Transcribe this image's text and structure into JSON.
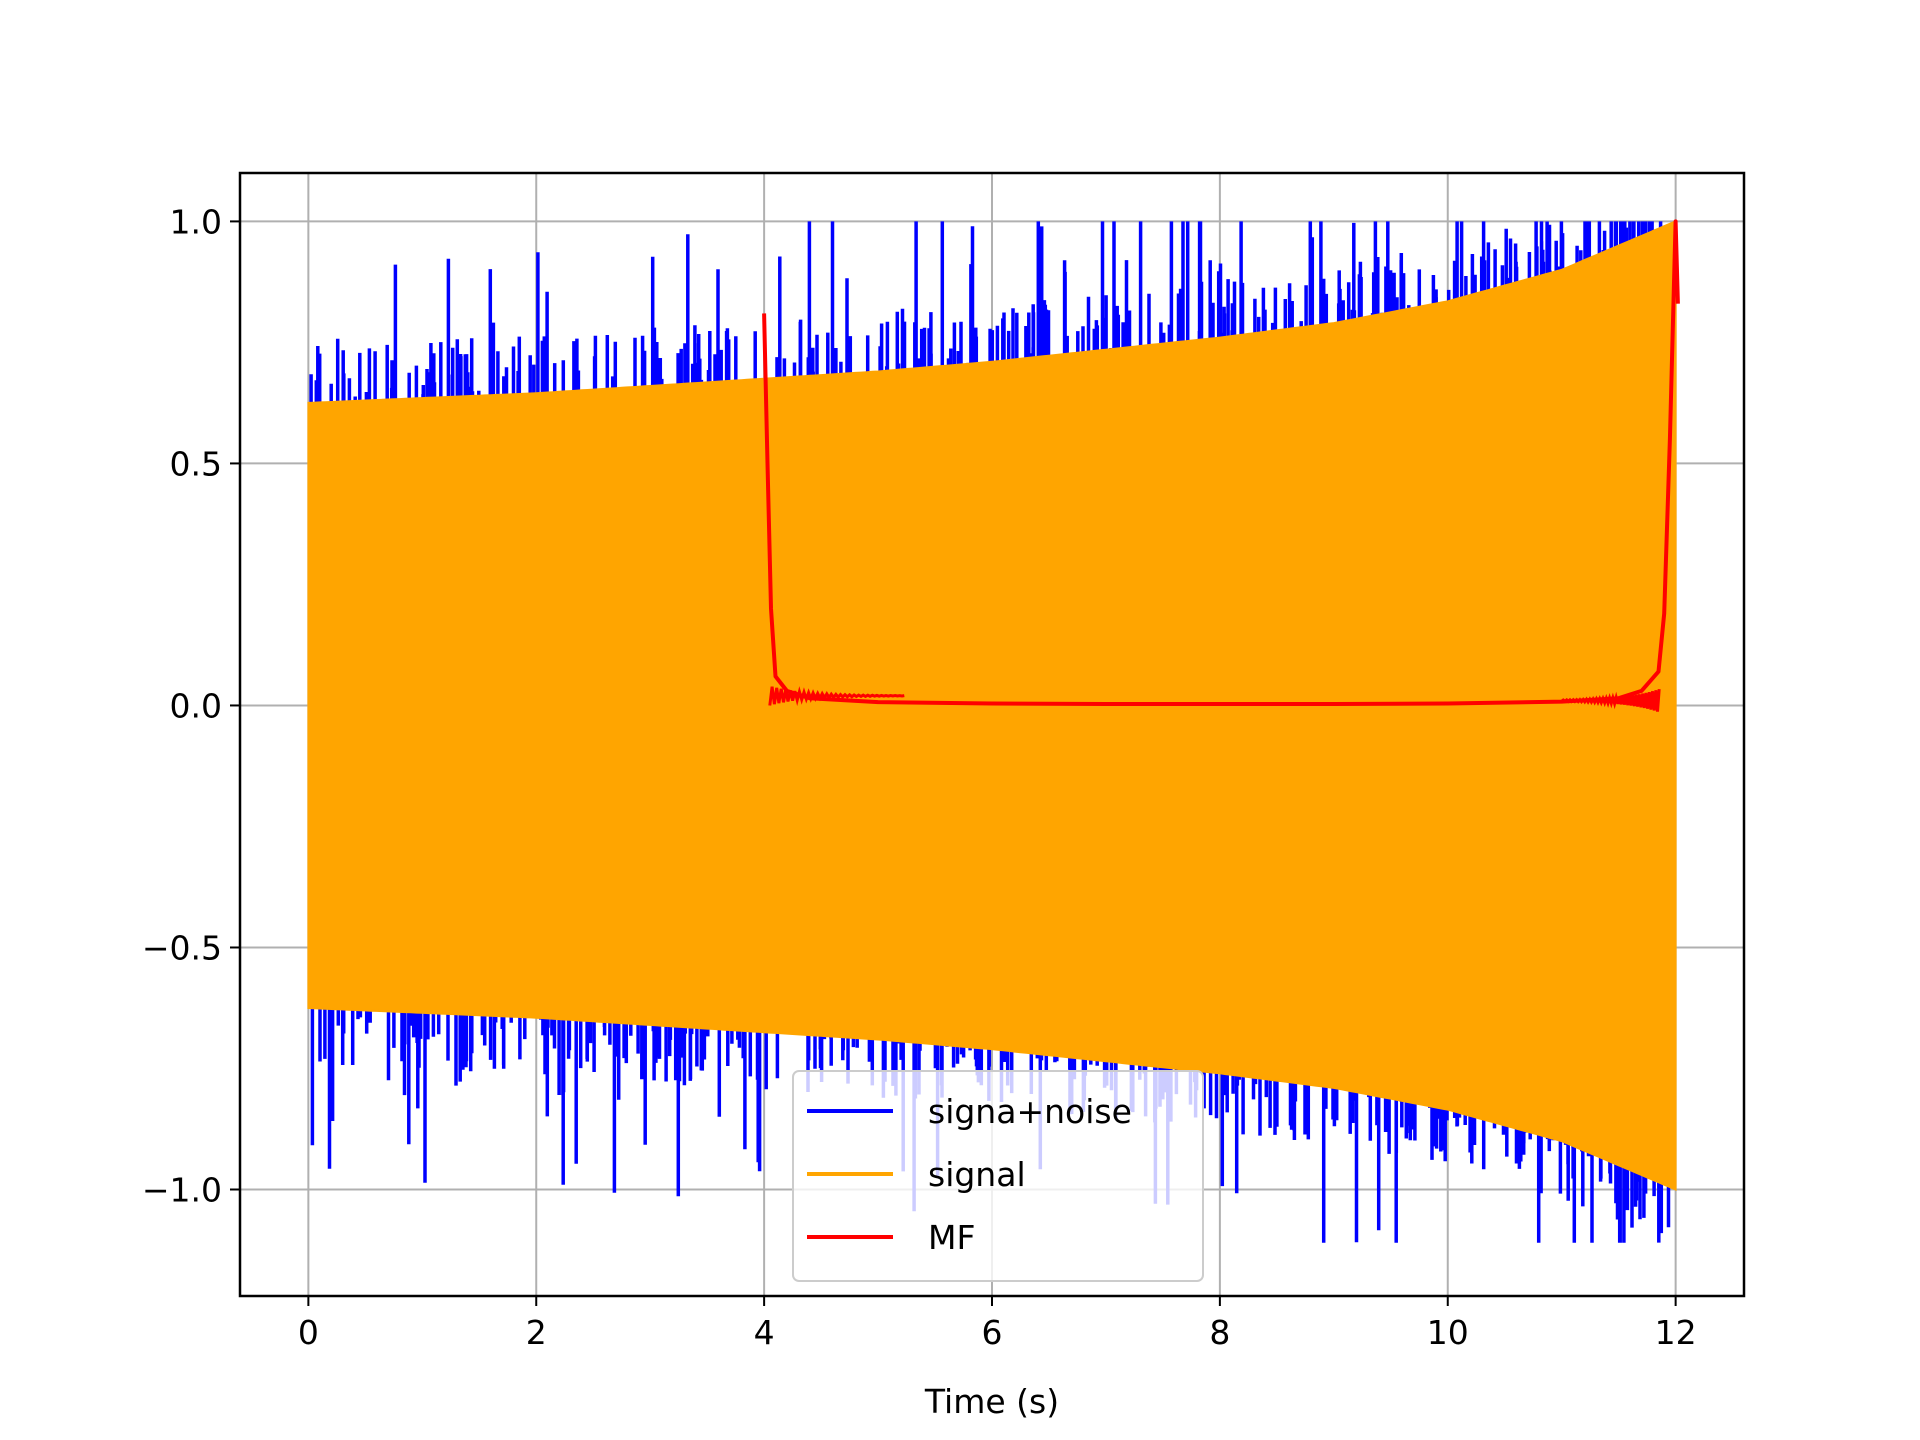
{
  "chart_data": {
    "type": "line",
    "title": "",
    "xlabel": "Time (s)",
    "ylabel": "",
    "xlim": [
      -0.6,
      12.6
    ],
    "ylim": [
      -1.22,
      1.1
    ],
    "grid": true,
    "legend_position": "lower-center",
    "x_ticks": [
      0,
      2,
      4,
      6,
      8,
      10,
      12
    ],
    "x_tick_labels": [
      "0",
      "2",
      "4",
      "6",
      "8",
      "10",
      "12"
    ],
    "y_ticks": [
      1.0,
      0.5,
      0.0,
      -0.5,
      -1.0
    ],
    "y_tick_labels": [
      "1.0",
      "0.5",
      "0.0",
      "−0.5",
      "−1.0"
    ],
    "series": [
      {
        "name": "signa+noise",
        "color": "#0000ff",
        "description_points": {
          "x_range": [
            0,
            12
          ],
          "envelope_start": 0.62,
          "envelope_end": 1.0,
          "max_positive_spike": 1.0,
          "min_negative_spike": -1.11
        }
      },
      {
        "name": "signal",
        "color": "#ffa500",
        "envelope": {
          "x": [
            0,
            1,
            2,
            3,
            4,
            5,
            6,
            7,
            8,
            9,
            10,
            11,
            12
          ],
          "upper": [
            0.625,
            0.635,
            0.645,
            0.66,
            0.675,
            0.69,
            0.71,
            0.735,
            0.76,
            0.79,
            0.835,
            0.9,
            1.0
          ],
          "lower": [
            -0.625,
            -0.635,
            -0.645,
            -0.66,
            -0.675,
            -0.69,
            -0.71,
            -0.735,
            -0.76,
            -0.79,
            -0.835,
            -0.9,
            -1.0
          ]
        }
      },
      {
        "name": "MF",
        "color": "#ff0000",
        "x": [
          4.0,
          4.03,
          4.06,
          4.1,
          4.2,
          4.4,
          5.0,
          6.0,
          7.0,
          8.0,
          9.0,
          10.0,
          11.0,
          11.5,
          11.7,
          11.85,
          11.9,
          11.95,
          12.0,
          12.02
        ],
        "y": [
          0.81,
          0.5,
          0.2,
          0.06,
          0.03,
          0.015,
          0.007,
          0.004,
          0.003,
          0.003,
          0.003,
          0.004,
          0.008,
          0.015,
          0.03,
          0.07,
          0.19,
          0.55,
          1.0,
          0.83
        ]
      }
    ]
  }
}
